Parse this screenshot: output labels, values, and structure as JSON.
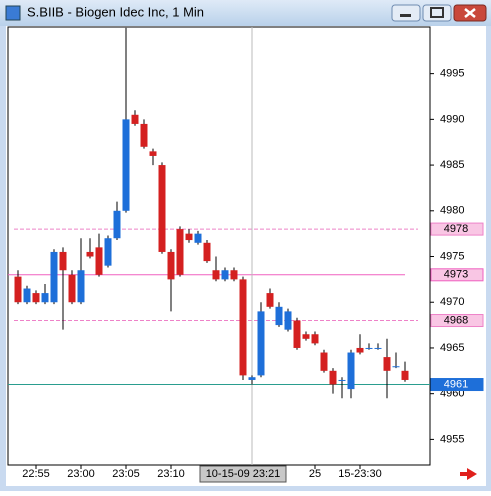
{
  "chart_data": {
    "type": "candlestick",
    "title": "S.BIIB - Biogen Idec Inc, 1 Min",
    "categories": [
      null,
      null,
      "22:55",
      null,
      null,
      null,
      null,
      "23:00",
      null,
      null,
      null,
      null,
      "23:05",
      null,
      null,
      null,
      null,
      "23:10",
      null,
      null,
      null,
      null,
      null,
      null,
      null,
      null,
      null,
      null,
      null,
      null,
      null,
      null,
      null,
      "25",
      null,
      null,
      null,
      null,
      "15-23:30",
      null,
      null,
      null,
      null,
      null
    ],
    "open": [
      4972.8,
      4970,
      4971,
      4970,
      4970,
      4975.5,
      4973,
      4970,
      4975.5,
      4976,
      4974,
      4977,
      4980,
      4990.5,
      4989.5,
      4986.5,
      4985,
      4975.5,
      4978,
      4977.5,
      4976.5,
      4976.5,
      4973.5,
      4972.5,
      4973.5,
      4972.5,
      4961.5,
      4962,
      4971,
      4967.5,
      4967,
      4968,
      4966.5,
      4966.5,
      4964.5,
      4962.5,
      4961.5,
      4960.5,
      4965,
      4965,
      4965,
      4964,
      4963,
      4962.5
    ],
    "high": [
      4973.5,
      4971.8,
      4971.3,
      4972,
      4975.8,
      4976,
      4973.5,
      4977,
      4977,
      4977.5,
      4977.3,
      4981,
      5000,
      4991,
      4990,
      4986.8,
      4985.3,
      4975.8,
      4978.3,
      4978,
      4977.8,
      4976.8,
      4975,
      4973.8,
      4973.8,
      4972.8,
      4962,
      4970,
      4971.5,
      4970,
      4969.3,
      4968.3,
      4966.8,
      4966.8,
      4964.8,
      4962.8,
      4961.8,
      4964.8,
      4966.5,
      4965.5,
      4965.5,
      4966,
      4964.5,
      4963.5
    ],
    "low": [
      4969.8,
      4969.8,
      4969.8,
      4969.8,
      4969.8,
      4967,
      4969.8,
      4969.8,
      4974.8,
      4972.8,
      4973.8,
      4976.8,
      4979.8,
      4989.3,
      4986.8,
      4985,
      4975.3,
      4969,
      4972.8,
      4976.5,
      4976.3,
      4974.3,
      4972.3,
      4972.3,
      4972.3,
      4961.5,
      4961,
      4961.8,
      4969.3,
      4967.3,
      4966.8,
      4964.8,
      4965.8,
      4965.3,
      4962.3,
      4960,
      4959.5,
      4959.5,
      4964.3,
      4964.8,
      4964.8,
      4959.5,
      4962.8,
      4961.3
    ],
    "close": [
      4970,
      4971.5,
      4970,
      4971,
      4975.5,
      4973.5,
      4970,
      4973.5,
      4975,
      4973,
      4977,
      4980,
      4990,
      4989.5,
      4987,
      4986,
      4975.5,
      4972.5,
      4973,
      4976.8,
      4977.5,
      4974.5,
      4972.5,
      4973.5,
      4972.5,
      4962,
      4961.8,
      4969,
      4969.5,
      4969.5,
      4969,
      4965,
      4966,
      4965.5,
      4962.5,
      4961,
      4961.5,
      4964.5,
      4964.5,
      4965,
      4965,
      4962.5,
      4963,
      4961.5
    ],
    "up_color": "#1e6fd9",
    "down_color": "#d42020",
    "ylim": [
      4952.2,
      5000.1
    ],
    "yticks": [
      4955,
      4960,
      4965,
      4970,
      4975,
      4980,
      4985,
      4990,
      4995
    ],
    "levels": [
      {
        "value": 4978,
        "style": "dashed",
        "color": "#ee82c8"
      },
      {
        "value": 4973,
        "style": "solid",
        "color": "#f060c0"
      },
      {
        "value": 4968,
        "style": "dashed",
        "color": "#ee82c8"
      },
      {
        "value": 4961,
        "style": "solid",
        "color": "#2a9d8f"
      }
    ],
    "crosshair": {
      "index": 26,
      "label": "10-15-09 23:21"
    }
  }
}
